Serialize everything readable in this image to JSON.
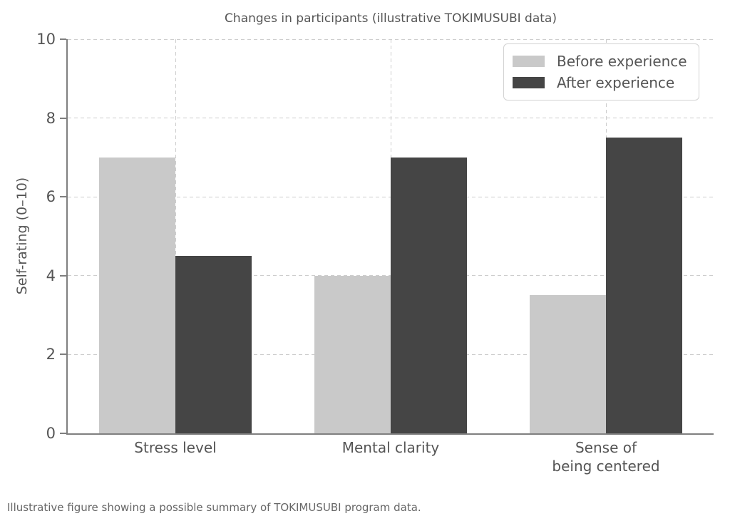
{
  "figure": {
    "caption": "Illustrative figure showing a possible summary of TOKIMUSUBI program data."
  },
  "chart_data": {
    "type": "bar",
    "title": "Changes in participants (illustrative TOKIMUSUBI data)",
    "categories": [
      "Stress level",
      "Mental clarity",
      "Sense of\nbeing centered"
    ],
    "series": [
      {
        "name": "Before experience",
        "color": "#c9c9c9",
        "values": [
          7,
          4,
          3.5
        ]
      },
      {
        "name": "After experience",
        "color": "#454545",
        "values": [
          4.5,
          7,
          7.5
        ]
      }
    ],
    "ylabel": "Self-rating (0–10)",
    "ylim": [
      0,
      10
    ],
    "yticks": [
      0,
      2,
      4,
      6,
      8,
      10
    ],
    "grid": true,
    "grid_style": "dashed",
    "grid_color": "#cdcdcd",
    "spine_color": "#7f7f7f",
    "text_color": "#555555",
    "background_color": "#ffffff",
    "legend_position": "upper right"
  }
}
